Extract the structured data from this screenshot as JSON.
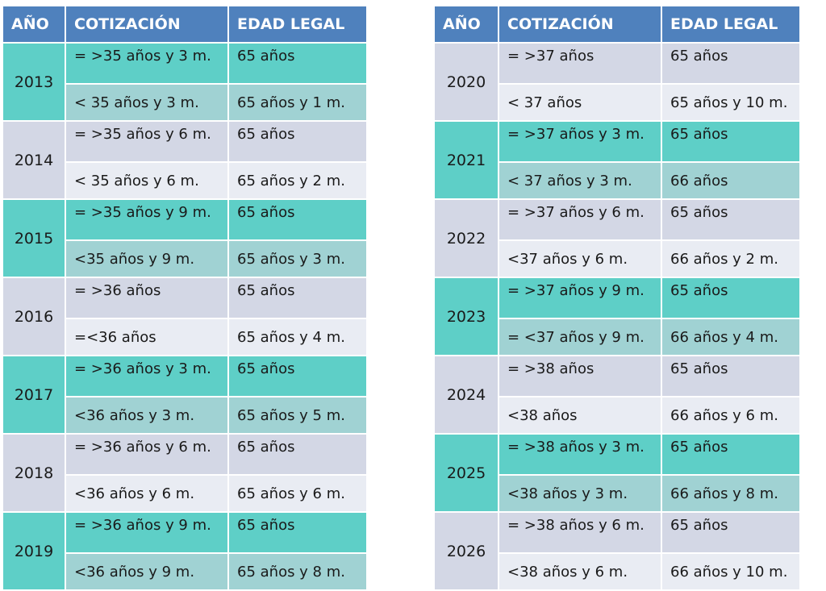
{
  "headers": {
    "year": "AÑO",
    "cotizacion": "COTIZACIÓN",
    "edad": "EDAD LEGAL"
  },
  "left": [
    {
      "year": "2013",
      "style": "teal",
      "r1": {
        "cot": "= >35 años y 3 m.",
        "edad": "65 años"
      },
      "r2": {
        "cot": "< 35 años y 3 m.",
        "edad": "65 años y 1 m."
      }
    },
    {
      "year": "2014",
      "style": "gray",
      "r1": {
        "cot": "= >35 años y 6 m.",
        "edad": "65 años"
      },
      "r2": {
        "cot": "< 35 años y 6 m.",
        "edad": "65 años y 2 m."
      }
    },
    {
      "year": "2015",
      "style": "teal",
      "r1": {
        "cot": "= >35 años y 9 m.",
        "edad": "65 años"
      },
      "r2": {
        "cot": "<35 años y 9 m.",
        "edad": "65 años y 3 m."
      }
    },
    {
      "year": "2016",
      "style": "gray",
      "r1": {
        "cot": "= >36 años",
        "edad": "65 años"
      },
      "r2": {
        "cot": "=<36 años",
        "edad": "65 años y 4 m."
      }
    },
    {
      "year": "2017",
      "style": "teal",
      "r1": {
        "cot": "= >36 años y 3 m.",
        "edad": "65 años"
      },
      "r2": {
        "cot": "<36 años y 3 m.",
        "edad": "65 años y 5 m."
      }
    },
    {
      "year": "2018",
      "style": "gray",
      "r1": {
        "cot": "= >36 años y 6 m.",
        "edad": "65 años"
      },
      "r2": {
        "cot": "<36 años y 6 m.",
        "edad": "65 años y 6 m."
      }
    },
    {
      "year": "2019",
      "style": "teal",
      "r1": {
        "cot": "= >36 años y 9 m.",
        "edad": "65 años"
      },
      "r2": {
        "cot": "<36 años y 9 m.",
        "edad": "65 años y 8 m."
      }
    }
  ],
  "right": [
    {
      "year": "2020",
      "style": "gray",
      "r1": {
        "cot": "= >37 años",
        "edad": "65 años"
      },
      "r2": {
        "cot": "< 37 años",
        "edad": "65 años y 10 m."
      }
    },
    {
      "year": "2021",
      "style": "teal",
      "r1": {
        "cot": "= >37 años y 3 m.",
        "edad": "65 años"
      },
      "r2": {
        "cot": "< 37 años y 3 m.",
        "edad": "66 años"
      }
    },
    {
      "year": "2022",
      "style": "gray",
      "r1": {
        "cot": "= >37 años y 6 m.",
        "edad": "65 años"
      },
      "r2": {
        "cot": "<37 años y 6 m.",
        "edad": "66 años y 2 m."
      }
    },
    {
      "year": "2023",
      "style": "teal",
      "r1": {
        "cot": "= >37 años y 9 m.",
        "edad": "65 años"
      },
      "r2": {
        "cot": "= <37 años y 9 m.",
        "edad": "66 años y 4 m."
      }
    },
    {
      "year": "2024",
      "style": "gray",
      "r1": {
        "cot": "= >38 años",
        "edad": "65 años"
      },
      "r2": {
        "cot": "<38 años",
        "edad": "66 años y 6 m."
      }
    },
    {
      "year": "2025",
      "style": "teal",
      "r1": {
        "cot": "= >38 años y 3 m.",
        "edad": "65 años"
      },
      "r2": {
        "cot": "<38 años y 3 m.",
        "edad": "66 años y 8 m."
      }
    },
    {
      "year": "2026",
      "style": "gray",
      "r1": {
        "cot": "= >38 años y 6 m.",
        "edad": "65 años"
      },
      "r2": {
        "cot": "<38 años y 6 m.",
        "edad": "66 años y 10 m."
      }
    }
  ]
}
